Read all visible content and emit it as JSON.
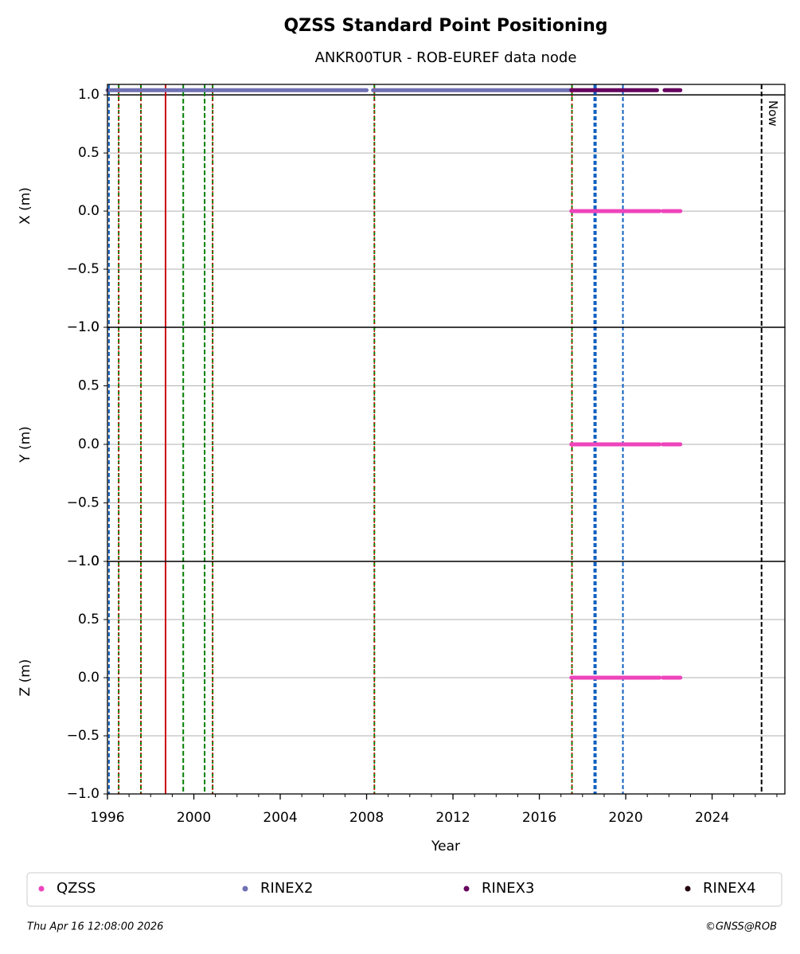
{
  "chart_data": {
    "type": "scatter",
    "title": "QZSS Standard Point Positioning",
    "subtitle": "ANKR00TUR - ROB-EUREF data node",
    "xlabel": "Year",
    "xlim": [
      1996,
      2027.37
    ],
    "xticks": [
      1996,
      2000,
      2004,
      2008,
      2012,
      2016,
      2020,
      2024
    ],
    "xminorticks": [
      1997,
      1998,
      1999,
      2001,
      2002,
      2003,
      2005,
      2006,
      2007,
      2009,
      2010,
      2011,
      2013,
      2014,
      2015,
      2017,
      2018,
      2019,
      2021,
      2022,
      2023,
      2025,
      2026,
      2027
    ],
    "grid": true,
    "panels": [
      {
        "ylabel": "X (m)",
        "ylim": [
          -1,
          1.09
        ],
        "hlines": [
          1
        ],
        "yticks": [
          {
            "value": -1,
            "label": "−1.0"
          },
          {
            "value": -0.5,
            "label": "−0.5"
          },
          {
            "value": 0,
            "label": "0.0"
          },
          {
            "value": 0.5,
            "label": "0.5"
          },
          {
            "value": 1,
            "label": "1.0"
          }
        ]
      },
      {
        "ylabel": "Y (m)",
        "ylim": [
          -1,
          1
        ],
        "yticks": [
          {
            "value": -1,
            "label": "−1.0"
          },
          {
            "value": -0.5,
            "label": "−0.5"
          },
          {
            "value": 0,
            "label": "0.0"
          },
          {
            "value": 0.5,
            "label": "0.5"
          },
          {
            "value": 1,
            "label": "1.0"
          }
        ]
      },
      {
        "ylabel": "Z (m)",
        "ylim": [
          -1,
          1
        ],
        "yticks": [
          {
            "value": -1,
            "label": "−1.0"
          },
          {
            "value": -0.5,
            "label": "−0.5"
          },
          {
            "value": 0,
            "label": "0.0"
          },
          {
            "value": 0.5,
            "label": "0.5"
          },
          {
            "value": 1,
            "label": "1.0"
          }
        ]
      }
    ],
    "series": [
      {
        "name": "QZSS",
        "color": "#ee44bb",
        "panels": [
          {
            "y": 0,
            "segments": [
              [
                2017.48,
                2021.57
              ],
              [
                2021.72,
                2022.53
              ]
            ]
          },
          {
            "y": 0,
            "segments": [
              [
                2017.48,
                2021.57
              ],
              [
                2021.72,
                2022.53
              ]
            ]
          },
          {
            "y": 0,
            "segments": [
              [
                2017.48,
                2021.57
              ],
              [
                2021.72,
                2022.53
              ]
            ]
          }
        ]
      },
      {
        "name": "RINEX2",
        "color": "#7070b4",
        "panels": [
          {
            "y": 1.04,
            "segments": [
              [
                1996.0,
                2008.0
              ],
              [
                2008.3,
                2017.48
              ]
            ]
          }
        ]
      },
      {
        "name": "RINEX3",
        "color": "#66005e",
        "panels": [
          {
            "y": 1.04,
            "segments": [
              [
                2017.48,
                2021.45
              ],
              [
                2021.8,
                2022.53
              ]
            ]
          }
        ]
      },
      {
        "name": "RINEX4",
        "color": "#220011",
        "panels": []
      }
    ],
    "vlines": [
      {
        "x": 1996.07,
        "color": "#1060c0",
        "dash": "5,3"
      },
      {
        "x": 1996.52,
        "color": "#008000",
        "color2": "#dd0000",
        "dash": "5,3"
      },
      {
        "x": 1997.55,
        "color": "#008000",
        "color2": "#dd0000",
        "dash": "5,3"
      },
      {
        "x": 1998.69,
        "color": "#cc0000"
      },
      {
        "x": 1999.51,
        "color": "#008000",
        "dash": "6,3"
      },
      {
        "x": 2000.5,
        "color": "#008000",
        "dash": "6,3"
      },
      {
        "x": 2000.87,
        "color": "#008000",
        "color2": "#dd0000",
        "dash": "5,3"
      },
      {
        "x": 2008.36,
        "color": "#008000",
        "color2": "#dd0000",
        "dash": "5,3"
      },
      {
        "x": 2017.51,
        "color": "#008000",
        "color2": "#dd0000",
        "dash": "5,3"
      },
      {
        "x": 2018.58,
        "color": "#1060c0",
        "dash": "5,3",
        "width": 4
      },
      {
        "x": 2019.87,
        "color": "#1060c0",
        "dash": "5,3"
      },
      {
        "x": 2026.29,
        "color": "#000000",
        "dash": "6,3",
        "label": "Now"
      }
    ],
    "footer_left": "Thu Apr 16 12:08:00 2026",
    "footer_right": "©GNSS@ROB"
  }
}
